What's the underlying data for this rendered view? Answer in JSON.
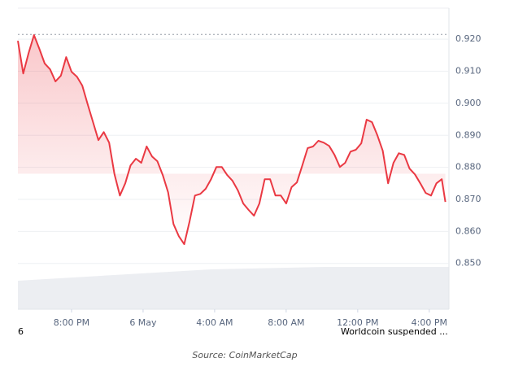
{
  "chart_data": {
    "type": "line",
    "x": [
      17.0,
      17.3,
      17.6,
      17.9,
      18.2,
      18.5,
      18.8,
      19.1,
      19.4,
      19.7,
      20.0,
      20.3,
      20.6,
      20.9,
      21.2,
      21.5,
      21.8,
      22.1,
      22.4,
      22.7,
      23.0,
      23.3,
      23.6,
      23.9,
      24.2,
      24.5,
      24.8,
      25.1,
      25.4,
      25.7,
      26.0,
      26.3,
      26.6,
      26.9,
      27.2,
      27.5,
      27.8,
      28.1,
      28.4,
      28.7,
      29.0,
      29.3,
      29.6,
      29.9,
      30.2,
      30.5,
      30.8,
      31.1,
      31.4,
      31.7,
      32.0,
      32.3,
      32.6,
      32.9,
      33.2,
      33.5,
      33.8,
      34.1,
      34.4,
      34.7,
      35.0,
      35.3,
      35.6,
      35.9,
      36.2,
      36.5,
      36.8,
      37.1,
      37.4,
      37.7,
      38.0,
      38.3,
      38.6,
      38.9,
      39.2,
      39.5,
      39.8,
      40.1,
      40.4,
      40.7,
      40.9
    ],
    "series": [
      {
        "color": "#ea3943",
        "values": [
          0.9195,
          0.9093,
          0.9157,
          0.9213,
          0.917,
          0.9124,
          0.9106,
          0.9068,
          0.9086,
          0.9144,
          0.9098,
          0.9083,
          0.9055,
          0.8997,
          0.8941,
          0.8885,
          0.891,
          0.8877,
          0.8778,
          0.8712,
          0.875,
          0.8806,
          0.8827,
          0.8814,
          0.8865,
          0.8834,
          0.8819,
          0.8776,
          0.8722,
          0.8623,
          0.8585,
          0.856,
          0.8631,
          0.8712,
          0.8717,
          0.8733,
          0.8763,
          0.8801,
          0.8801,
          0.8776,
          0.8758,
          0.8728,
          0.8687,
          0.8667,
          0.8649,
          0.8687,
          0.8763,
          0.8763,
          0.8712,
          0.8712,
          0.8687,
          0.8738,
          0.8753,
          0.8806,
          0.886,
          0.8865,
          0.8883,
          0.8877,
          0.8867,
          0.8839,
          0.8801,
          0.8814,
          0.8849,
          0.8855,
          0.8875,
          0.8949,
          0.8941,
          0.89,
          0.8852,
          0.875,
          0.8814,
          0.8844,
          0.8839,
          0.8796,
          0.8778,
          0.875,
          0.872,
          0.8712,
          0.875,
          0.8763,
          0.8692
        ]
      }
    ],
    "reference_line": 0.9215,
    "xlim": [
      17.0,
      41.1
    ],
    "xticks": [
      {
        "value": 20,
        "label": "8:00 PM"
      },
      {
        "value": 24,
        "label": "6 May"
      },
      {
        "value": 28,
        "label": "4:00 AM"
      },
      {
        "value": 32,
        "label": "8:00 AM"
      },
      {
        "value": 36,
        "label": "12:00 PM"
      },
      {
        "value": 40,
        "label": "4:00 PM"
      }
    ],
    "ylim": [
      0.8357,
      0.9297
    ],
    "yticks": [
      {
        "value": 0.92,
        "label": "0.920"
      },
      {
        "value": 0.91,
        "label": "0.910"
      },
      {
        "value": 0.9,
        "label": "0.900"
      },
      {
        "value": 0.89,
        "label": "0.890"
      },
      {
        "value": 0.88,
        "label": "0.880"
      },
      {
        "value": 0.87,
        "label": "0.870"
      },
      {
        "value": 0.86,
        "label": "0.860"
      },
      {
        "value": 0.85,
        "label": "0.850"
      }
    ],
    "grid": true,
    "annotations": [
      "6",
      "Worldcoin suspended ..."
    ],
    "source": "Source: CoinMarketCap"
  }
}
